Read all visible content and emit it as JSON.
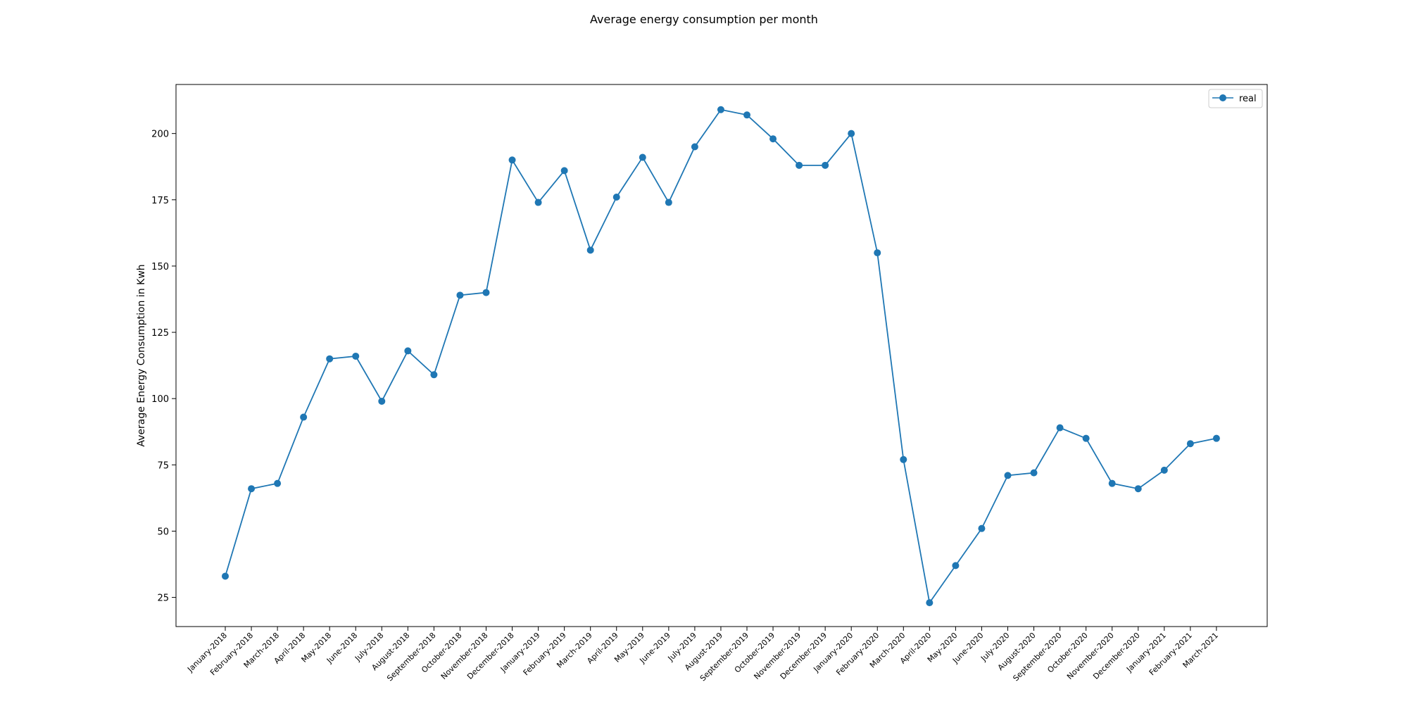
{
  "chart_data": {
    "type": "line",
    "title": "Average energy consumption per month",
    "xlabel": "",
    "ylabel": "Average Energy Consumption in Kwh",
    "categories": [
      "January-2018",
      "February-2018",
      "March-2018",
      "April-2018",
      "May-2018",
      "June-2018",
      "July-2018",
      "August-2018",
      "September-2018",
      "October-2018",
      "November-2018",
      "December-2018",
      "January-2019",
      "February-2019",
      "March-2019",
      "April-2019",
      "May-2019",
      "June-2019",
      "July-2019",
      "August-2019",
      "September-2019",
      "October-2019",
      "November-2019",
      "December-2019",
      "January-2020",
      "February-2020",
      "March-2020",
      "April-2020",
      "May-2020",
      "June-2020",
      "July-2020",
      "August-2020",
      "September-2020",
      "October-2020",
      "November-2020",
      "December-2020",
      "January-2021",
      "February-2021",
      "March-2021"
    ],
    "series": [
      {
        "name": "real",
        "color": "#1f77b4",
        "marker": "circle",
        "values": [
          33,
          66,
          68,
          93,
          115,
          116,
          99,
          118,
          109,
          139,
          140,
          190,
          174,
          186,
          156,
          176,
          191,
          174,
          195,
          209,
          207,
          198,
          188,
          188,
          200,
          155,
          77,
          23,
          37,
          51,
          71,
          72,
          89,
          85,
          68,
          66,
          73,
          83,
          85
        ]
      }
    ],
    "yticks": [
      25,
      50,
      75,
      100,
      125,
      150,
      175,
      200
    ],
    "ylim": [
      14,
      218.5
    ],
    "grid": false,
    "legend_position": "top-right"
  }
}
